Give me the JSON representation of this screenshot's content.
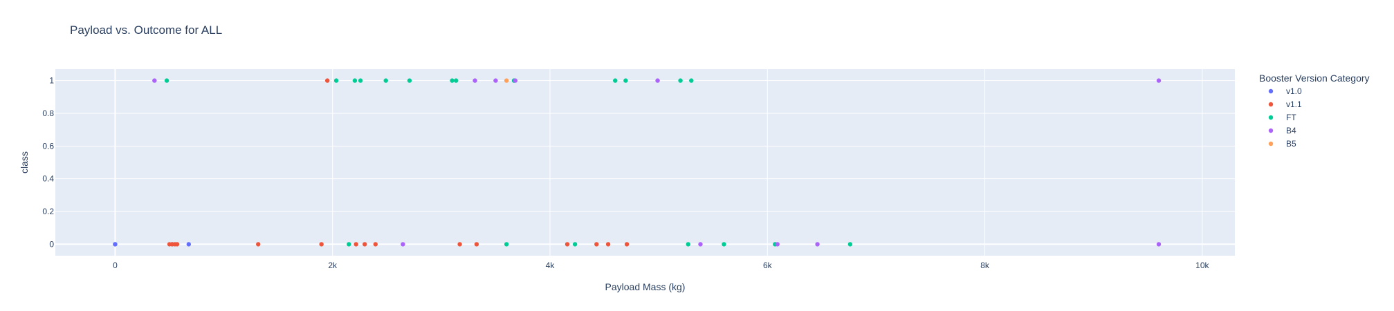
{
  "chart_data": {
    "type": "scatter",
    "title": "Payload vs. Outcome for ALL",
    "xlabel": "Payload Mass (kg)",
    "ylabel": "class",
    "xlim": [
      -550,
      10300
    ],
    "ylim": [
      -0.07,
      1.07
    ],
    "xticks": [
      0,
      2000,
      4000,
      6000,
      8000,
      10000
    ],
    "xtick_labels": [
      "0",
      "2k",
      "4k",
      "6k",
      "8k",
      "10k"
    ],
    "yticks": [
      0,
      0.2,
      0.4,
      0.6,
      0.8,
      1
    ],
    "ytick_labels": [
      "0",
      "0.2",
      "0.4",
      "0.6",
      "0.8",
      "1"
    ],
    "grid": true,
    "legend_title": "Booster Version Category",
    "legend_position": "right",
    "series": [
      {
        "name": "v1.0",
        "color": "#636efa",
        "points": [
          [
            0,
            0
          ],
          [
            0,
            0
          ],
          [
            525,
            0
          ],
          [
            677,
            0
          ]
        ]
      },
      {
        "name": "v1.1",
        "color": "#ef553b",
        "points": [
          [
            500,
            0
          ],
          [
            525,
            0
          ],
          [
            550,
            0
          ],
          [
            570,
            0
          ],
          [
            1316,
            0
          ],
          [
            1898,
            0
          ],
          [
            1952,
            1
          ],
          [
            2216,
            0
          ],
          [
            2296,
            0
          ],
          [
            2395,
            0
          ],
          [
            3170,
            0
          ],
          [
            3325,
            0
          ],
          [
            4159,
            0
          ],
          [
            4428,
            0
          ],
          [
            4535,
            0
          ],
          [
            4707,
            0
          ]
        ]
      },
      {
        "name": "FT",
        "color": "#00cc96",
        "points": [
          [
            475,
            1
          ],
          [
            2034,
            1
          ],
          [
            2150,
            0
          ],
          [
            2205,
            1
          ],
          [
            2257,
            1
          ],
          [
            2490,
            1
          ],
          [
            2708,
            1
          ],
          [
            3100,
            1
          ],
          [
            3136,
            1
          ],
          [
            3600,
            0
          ],
          [
            3669,
            1
          ],
          [
            4230,
            0
          ],
          [
            4600,
            1
          ],
          [
            4696,
            1
          ],
          [
            5200,
            1
          ],
          [
            5300,
            1
          ],
          [
            5271,
            0
          ],
          [
            5600,
            0
          ],
          [
            6070,
            0
          ],
          [
            6761,
            0
          ]
        ]
      },
      {
        "name": "B4",
        "color": "#ab63fa",
        "points": [
          [
            362,
            1
          ],
          [
            2647,
            0
          ],
          [
            3310,
            1
          ],
          [
            3500,
            1
          ],
          [
            3681,
            1
          ],
          [
            4990,
            1
          ],
          [
            5384,
            0
          ],
          [
            6092,
            0
          ],
          [
            6460,
            0
          ],
          [
            9600,
            1
          ],
          [
            9600,
            0
          ]
        ]
      },
      {
        "name": "B5",
        "color": "#ffa15a",
        "points": [
          [
            3600,
            1
          ]
        ]
      }
    ]
  }
}
